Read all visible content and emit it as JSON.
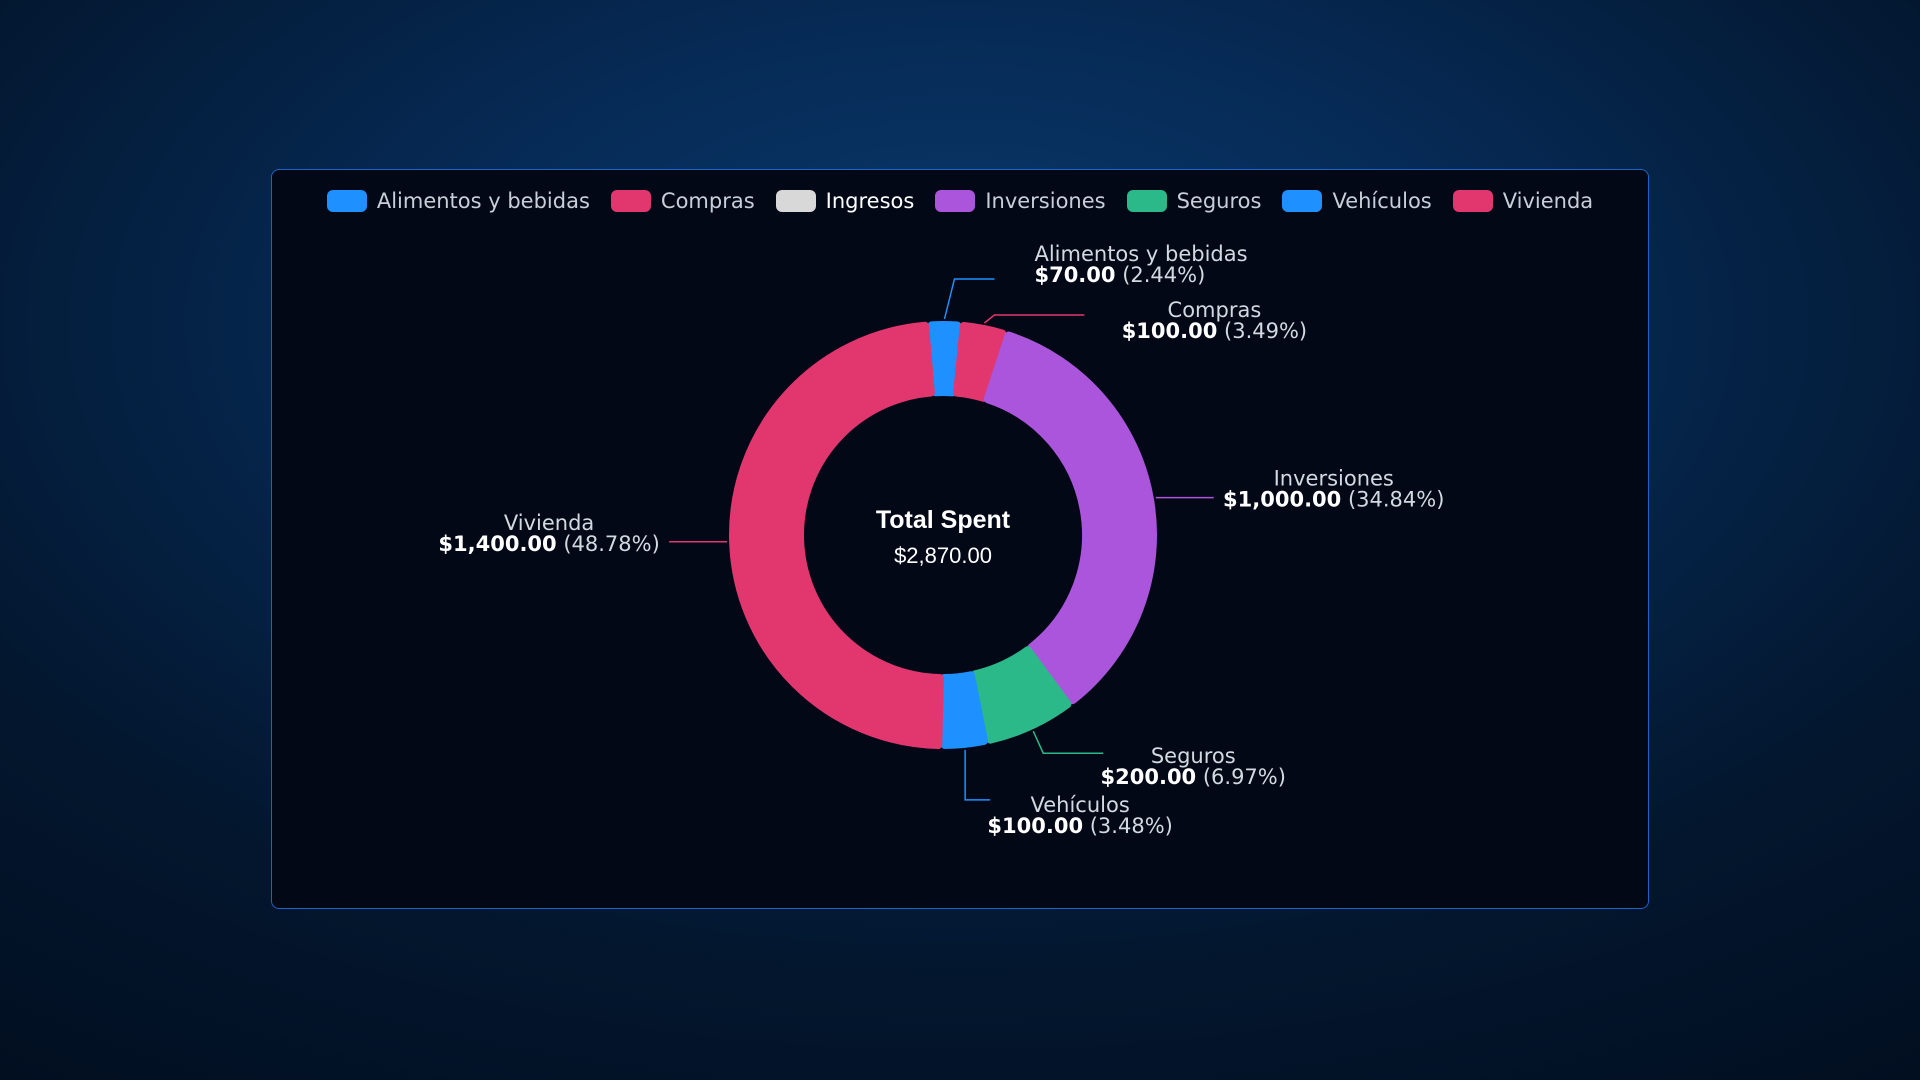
{
  "chart_data": {
    "type": "pie",
    "subtype": "donut",
    "center_title": "Total Spent",
    "center_value": "$2,870.00",
    "legend_position": "top",
    "legend": [
      {
        "label": "Alimentos y bebidas",
        "color": "#1e90ff"
      },
      {
        "label": "Compras",
        "color": "#e2366f"
      },
      {
        "label": "Ingresos",
        "color": "#d8d8d8",
        "active": true
      },
      {
        "label": "Inversiones",
        "color": "#ab55dc"
      },
      {
        "label": "Seguros",
        "color": "#2bb98a"
      },
      {
        "label": "Vehículos",
        "color": "#1e90ff"
      },
      {
        "label": "Vivienda",
        "color": "#e2366f"
      }
    ],
    "slices": [
      {
        "name": "Alimentos y bebidas",
        "value": 70,
        "amount": "$70.00",
        "percent": "(2.44%)",
        "color": "#1e90ff"
      },
      {
        "name": "Compras",
        "value": 100,
        "amount": "$100.00",
        "percent": "(3.49%)",
        "color": "#e2366f"
      },
      {
        "name": "Inversiones",
        "value": 1000,
        "amount": "$1,000.00",
        "percent": "(34.84%)",
        "color": "#ab55dc"
      },
      {
        "name": "Seguros",
        "value": 200,
        "amount": "$200.00",
        "percent": "(6.97%)",
        "color": "#2bb98a"
      },
      {
        "name": "Vehículos",
        "value": 100,
        "amount": "$100.00",
        "percent": "(3.48%)",
        "color": "#1e90ff"
      },
      {
        "name": "Vivienda",
        "value": 1400,
        "amount": "$1,400.00",
        "percent": "(48.78%)",
        "color": "#e2366f"
      }
    ]
  }
}
